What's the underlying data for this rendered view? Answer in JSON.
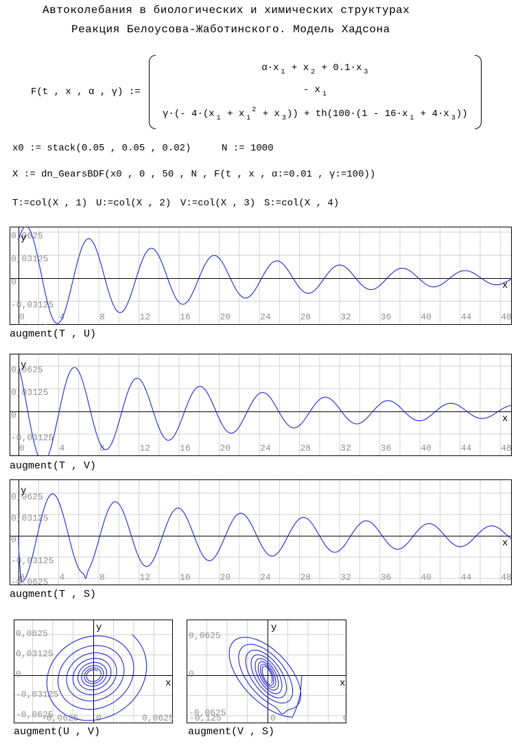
{
  "title": {
    "line1": "Автоколебания в биологических и химических структурах",
    "line2": "Реакция Белоусова-Жаботинского. Модель Хадсона"
  },
  "formula": {
    "lhs": "F(t , x , α , γ) := ",
    "rows": [
      [
        {
          "t": "α·x"
        },
        {
          "sub": "1"
        },
        {
          "t": " + x"
        },
        {
          "sub": "2"
        },
        {
          "t": " + 0.1·x"
        },
        {
          "sub": "3"
        }
      ],
      [
        {
          "t": "- x"
        },
        {
          "sub": "1"
        }
      ],
      [
        {
          "t": "γ·(- 4·(x"
        },
        {
          "sub": "1"
        },
        {
          "t": " + x"
        },
        {
          "sub": "1"
        },
        {
          "sup": "2"
        },
        {
          "t": " + x"
        },
        {
          "sub": "3"
        },
        {
          "t": ")) + th(100·(1 - 16·x"
        },
        {
          "sub": "1"
        },
        {
          "t": " + 4·x"
        },
        {
          "sub": "3"
        },
        {
          "t": "))"
        }
      ]
    ]
  },
  "definitions": {
    "line1_left": "x0 := stack(0.05 , 0.05 , 0.02)",
    "line1_right": "N := 1000",
    "line2": "X := dn_GearsBDF(x0 , 0 , 50 , N , F(t , x , α:=0.01 , γ:=100))",
    "line3": [
      "T:=col(X , 1)",
      "U:=col(X , 2)",
      "V:=col(X , 3)",
      "S:=col(X , 4)"
    ]
  },
  "colors": {
    "curve": "#2222cf",
    "grid": "#d2d2d2",
    "tick_text": "#8f8f8f",
    "axis": "#000000",
    "background": "#ffffff"
  },
  "series_params": {
    "U": {
      "form": "sin",
      "amplitude": 0.073,
      "decay": 0.044,
      "period": 6.25,
      "phase": 0.78,
      "initial": 0.05,
      "description": "x1(t): damped oscillation, first peak ≈0.068 at t≈0.8, period ≈6.25, amplitude ≈0.01 by t≈44"
    },
    "V": {
      "form": "cos",
      "amplitude": 0.078,
      "decay": 0.045,
      "period": 6.25,
      "phase": 0.64,
      "initial": 0.0625,
      "description": "x2(t): starts at ≈0.0625 falling, first minimum ≈-0.066 at t≈2.6, period ≈6.25"
    },
    "S": {
      "form": "delayed-neg-cos",
      "amplitude": 0.068,
      "decay": 0.033,
      "period": 6.25,
      "delay": 0.3,
      "drop_to": -0.068,
      "notch_t": 6.7,
      "notch_depth": 0.008,
      "notch_width": 0.15,
      "description": "x3(t): starts at 0, near-vertical drop to ≈-0.068 at t≈0.3, sharp notch at minimum t≈6.7, period ≈6.25"
    }
  },
  "chart_data": [
    {
      "id": "plot-T-U",
      "type": "line",
      "parametric": false,
      "label": "augment(T , U)",
      "xlabel": "x",
      "ylabel": "y",
      "x_range": [
        0,
        49.2
      ],
      "y_range": [
        -0.067,
        0.07
      ],
      "x_ticks": [
        "0",
        "4",
        "8",
        "12",
        "16",
        "20",
        "24",
        "28",
        "32",
        "36",
        "40",
        "44",
        "48"
      ],
      "y_ticks": [
        "0,0625",
        "0,03125",
        "0",
        "-0,03125",
        "-0,0625"
      ],
      "y_tick_values": [
        0.0625,
        0.03125,
        0,
        -0.03125,
        -0.0625
      ],
      "series": "U",
      "grid": true,
      "legend": "none"
    },
    {
      "id": "plot-T-V",
      "type": "line",
      "parametric": false,
      "label": "augment(T , V)",
      "xlabel": "x",
      "ylabel": "y",
      "x_range": [
        0,
        49.2
      ],
      "y_range": [
        -0.067,
        0.078
      ],
      "x_ticks": [
        "0",
        "4",
        "8",
        "12",
        "16",
        "20",
        "24",
        "28",
        "32",
        "36",
        "40",
        "44",
        "48"
      ],
      "y_ticks": [
        "0,0625",
        "0,03125",
        "0",
        "-0,03125",
        "-0,0625"
      ],
      "y_tick_values": [
        0.0625,
        0.03125,
        0,
        -0.03125,
        -0.0625
      ],
      "series": "V",
      "grid": true,
      "legend": "none"
    },
    {
      "id": "plot-T-S",
      "type": "line",
      "parametric": false,
      "label": "augment(T , S)",
      "xlabel": "x",
      "ylabel": "y",
      "x_range": [
        0,
        49.2
      ],
      "y_range": [
        -0.082,
        0.082
      ],
      "x_ticks": [
        "0",
        "4",
        "8",
        "12",
        "16",
        "20",
        "24",
        "28",
        "32",
        "36",
        "40",
        "44",
        "48"
      ],
      "y_ticks": [
        "0,0625",
        "0,03125",
        "0",
        "-0,03125",
        "-0,0625"
      ],
      "y_tick_values": [
        0.0625,
        0.03125,
        0,
        -0.03125,
        -0.0625
      ],
      "series": "S",
      "grid": true,
      "legend": "none"
    },
    {
      "id": "plot-U-V",
      "type": "line",
      "parametric": true,
      "label": "augment(U , V)",
      "xlabel": "x",
      "ylabel": "y",
      "x_series": "U",
      "y_series": "V",
      "x_range": [
        -0.105,
        0.105
      ],
      "y_range": [
        -0.085,
        0.085
      ],
      "x_ticks": [
        "-0,0625",
        "0",
        "0,0625"
      ],
      "y_ticks": [
        "0,0625",
        "0,03125",
        "0",
        "-0,03125",
        "-0,0625"
      ],
      "y_tick_values": [
        0.0625,
        0.03125,
        0,
        -0.03125,
        -0.0625
      ],
      "shape": "inward clockwise spiral converging to origin, ~8 turns",
      "grid": true,
      "legend": "none"
    },
    {
      "id": "plot-V-S",
      "type": "line",
      "parametric": true,
      "label": "augment(V , S)",
      "xlabel": "x",
      "ylabel": "y",
      "x_series": "V",
      "y_series": "S",
      "x_range": [
        -0.145,
        0.145
      ],
      "y_range": [
        -0.084,
        0.084
      ],
      "x_ticks": [
        "-0,125",
        "0",
        "0"
      ],
      "y_ticks": [
        "0,0625",
        "0",
        "-0,0625"
      ],
      "y_tick_values": [
        0.0625,
        0,
        -0.0625
      ],
      "shape": "inward spiral with vertical drop segment on right side and dented bottom on outer loop",
      "grid": true,
      "legend": "none"
    }
  ]
}
